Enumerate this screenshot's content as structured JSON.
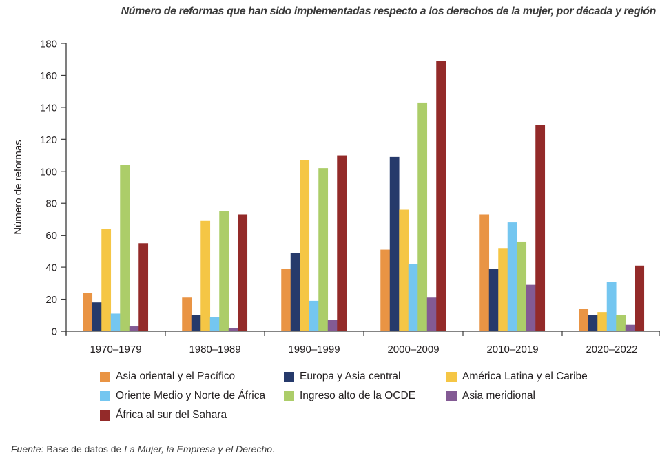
{
  "chart_data": {
    "type": "bar",
    "title": "Número de reformas que han sido implementadas respecto a los derechos de la mujer, por década y región",
    "xlabel": "",
    "ylabel": "Número de reformas",
    "ylim": [
      0,
      180
    ],
    "yticks": [
      0,
      20,
      40,
      60,
      80,
      100,
      120,
      140,
      160,
      180
    ],
    "grid": false,
    "legend_position": "bottom",
    "categories": [
      "1970–1979",
      "1980–1989",
      "1990–1999",
      "2000–2009",
      "2010–2019",
      "2020–2022"
    ],
    "series": [
      {
        "name": "Asia oriental y el Pacífico",
        "color": "#e99444",
        "values": [
          24,
          21,
          39,
          51,
          73,
          14
        ]
      },
      {
        "name": "Europa y Asia central",
        "color": "#263a6b",
        "values": [
          18,
          10,
          49,
          109,
          39,
          10
        ]
      },
      {
        "name": "América Latina y el Caribe",
        "color": "#f5c645",
        "values": [
          64,
          69,
          107,
          76,
          52,
          12
        ]
      },
      {
        "name": "Oriente Medio y Norte de África",
        "color": "#74c6f0",
        "values": [
          11,
          9,
          19,
          42,
          68,
          31
        ]
      },
      {
        "name": "Ingreso alto de la OCDE",
        "color": "#accd69",
        "values": [
          104,
          75,
          102,
          143,
          56,
          10
        ]
      },
      {
        "name": "Asia meridional",
        "color": "#835a94",
        "values": [
          3,
          2,
          7,
          21,
          29,
          4
        ]
      },
      {
        "name": "África al sur del Sahara",
        "color": "#932a29",
        "values": [
          55,
          73,
          110,
          169,
          129,
          41
        ]
      }
    ]
  },
  "source": {
    "label": "Fuente:",
    "text_before": " Base de datos de ",
    "italic_title": "La Mujer, la Empresa y el Derecho",
    "text_after": "."
  }
}
